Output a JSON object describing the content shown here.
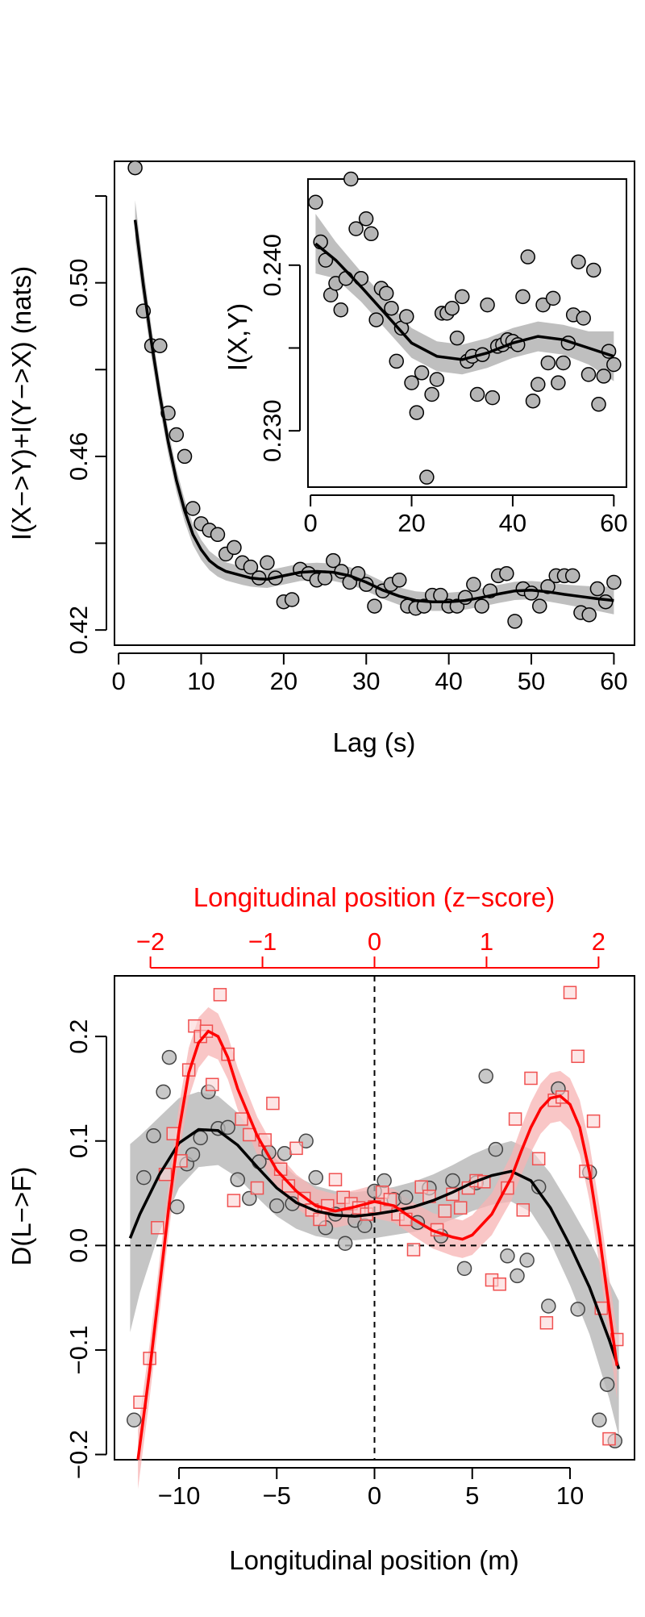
{
  "colors": {
    "black": "#000000",
    "red": "#ff0000",
    "grey_band": "#bfbfbf",
    "red_band": "#f7b3b3",
    "grey_point_fill": "#b5b5b5",
    "red_point_fill": "#fbd6d6"
  },
  "chart_data": [
    {
      "id": "main",
      "type": "scatter",
      "title": "",
      "xlabel": "Lag (s)",
      "ylabel": "I(X−>Y)+I(Y−>X) (nats)",
      "xlim": [
        -0.5,
        62.5
      ],
      "ylim": [
        0.4165,
        0.528
      ],
      "xticks": [
        0,
        10,
        20,
        30,
        40,
        50,
        60
      ],
      "xtick_labels": [
        "0",
        "10",
        "20",
        "30",
        "40",
        "50",
        "60"
      ],
      "yticks": [
        0.42,
        0.44,
        0.46,
        0.48,
        0.5,
        0.52
      ],
      "ytick_labels": [
        "0.42",
        "",
        "0.46",
        "",
        "0.50",
        ""
      ],
      "series": [
        {
          "name": "observed",
          "marker": "circle",
          "x": [
            2,
            3,
            4,
            5,
            6,
            7,
            8,
            9,
            10,
            11,
            12,
            13,
            14,
            15,
            16,
            17,
            18,
            19,
            20,
            21,
            22,
            23,
            24,
            25,
            26,
            27,
            28,
            29,
            30,
            31,
            32,
            33,
            34,
            35,
            36,
            37,
            38,
            39,
            40,
            41,
            42,
            43,
            44,
            45,
            46,
            47,
            48,
            49,
            50,
            51,
            52,
            53,
            54,
            55,
            56,
            57,
            58,
            59,
            60
          ],
          "y": [
            0.5265,
            0.4935,
            0.4855,
            0.4855,
            0.47,
            0.465,
            0.46,
            0.448,
            0.4445,
            0.443,
            0.442,
            0.4375,
            0.439,
            0.4355,
            0.4345,
            0.432,
            0.4355,
            0.432,
            0.4265,
            0.427,
            0.434,
            0.433,
            0.4315,
            0.432,
            0.436,
            0.4335,
            0.431,
            0.433,
            0.4305,
            0.4255,
            0.429,
            0.4305,
            0.4315,
            0.4255,
            0.425,
            0.4255,
            0.428,
            0.428,
            0.4255,
            0.4255,
            0.4275,
            0.4305,
            0.4255,
            0.429,
            0.4325,
            0.433,
            0.422,
            0.4295,
            0.4285,
            0.4255,
            0.43,
            0.4325,
            0.4325,
            0.4325,
            0.424,
            0.4235,
            0.4295,
            0.4265,
            0.431
          ]
        },
        {
          "name": "smooth fit",
          "type": "line",
          "x": [
            2,
            3,
            4,
            5,
            6,
            7,
            8,
            9,
            10,
            11,
            12,
            13,
            14,
            15,
            16,
            17,
            18,
            20,
            22,
            24,
            26,
            28,
            30,
            32,
            34,
            36,
            38,
            40,
            42,
            44,
            46,
            48,
            50,
            52,
            54,
            56,
            58,
            60
          ],
          "y": [
            0.5145,
            0.4995,
            0.486,
            0.474,
            0.4635,
            0.4545,
            0.4475,
            0.442,
            0.4385,
            0.436,
            0.4345,
            0.4335,
            0.433,
            0.4325,
            0.432,
            0.4318,
            0.4317,
            0.4325,
            0.4333,
            0.4335,
            0.4333,
            0.4325,
            0.431,
            0.4292,
            0.4278,
            0.4268,
            0.4265,
            0.4265,
            0.4268,
            0.4275,
            0.4283,
            0.429,
            0.4292,
            0.4288,
            0.4282,
            0.4277,
            0.4272,
            0.4268
          ],
          "band_halfwidth": [
            0.0045,
            0.004,
            0.0035,
            0.003,
            0.0028,
            0.0026,
            0.0025,
            0.0024,
            0.0023,
            0.0022,
            0.0022,
            0.0021,
            0.0021,
            0.0021,
            0.002,
            0.002,
            0.002,
            0.002,
            0.002,
            0.002,
            0.002,
            0.002,
            0.002,
            0.002,
            0.002,
            0.0021,
            0.0021,
            0.0021,
            0.0021,
            0.0021,
            0.0021,
            0.0021,
            0.0021,
            0.0022,
            0.0023,
            0.0025,
            0.0028,
            0.0032
          ]
        }
      ]
    },
    {
      "id": "inset",
      "type": "scatter",
      "title": "",
      "xlabel": "",
      "ylabel": "I(X,Y)",
      "xlim": [
        -0.5,
        62.5
      ],
      "ylim": [
        0.2266,
        0.2452
      ],
      "xticks": [
        0,
        20,
        40,
        60
      ],
      "xtick_labels": [
        "0",
        "20",
        "40",
        "60"
      ],
      "yticks": [
        0.23,
        0.235,
        0.24
      ],
      "ytick_labels": [
        "0.230",
        "",
        "0.240"
      ],
      "series": [
        {
          "name": "observed",
          "marker": "circle",
          "x": [
            1,
            2,
            3,
            4,
            5,
            6,
            7,
            8,
            9,
            10,
            11,
            12,
            13,
            14,
            15,
            16,
            17,
            18,
            19,
            20,
            21,
            22,
            23,
            24,
            25,
            26,
            27,
            28,
            29,
            30,
            31,
            32,
            33,
            34,
            35,
            36,
            37,
            38,
            39,
            40,
            41,
            42,
            43,
            44,
            45,
            46,
            47,
            48,
            49,
            50,
            51,
            52,
            53,
            54,
            55,
            56,
            57,
            58,
            59,
            60
          ],
          "y": [
            0.2438,
            0.2414,
            0.2403,
            0.2382,
            0.2389,
            0.2373,
            0.2392,
            0.2452,
            0.2422,
            0.2392,
            0.2428,
            0.2419,
            0.2367,
            0.2386,
            0.2383,
            0.2374,
            0.2342,
            0.2362,
            0.2369,
            0.2329,
            0.2311,
            0.2335,
            0.2272,
            0.2322,
            0.2331,
            0.2371,
            0.2371,
            0.2374,
            0.2356,
            0.2381,
            0.2342,
            0.2345,
            0.2322,
            0.2346,
            0.2376,
            0.232,
            0.2351,
            0.2352,
            0.2355,
            0.2354,
            0.2352,
            0.2381,
            0.2405,
            0.2318,
            0.2328,
            0.2376,
            0.2341,
            0.238,
            0.2329,
            0.2341,
            0.2353,
            0.237,
            0.2402,
            0.2368,
            0.2334,
            0.2397,
            0.2316,
            0.2333,
            0.2348,
            0.234
          ]
        },
        {
          "name": "smooth fit",
          "type": "line",
          "x": [
            1,
            5,
            10,
            15,
            20,
            25,
            30,
            35,
            40,
            45,
            50,
            55,
            60
          ],
          "y": [
            0.2413,
            0.2403,
            0.2387,
            0.237,
            0.2353,
            0.2345,
            0.2343,
            0.2347,
            0.2353,
            0.2357,
            0.2355,
            0.235,
            0.2345
          ],
          "band_halfwidth": [
            0.0018,
            0.0011,
            0.0009,
            0.0009,
            0.0009,
            0.0009,
            0.0009,
            0.0009,
            0.0009,
            0.0009,
            0.0009,
            0.001,
            0.0015
          ]
        }
      ]
    },
    {
      "id": "bottom",
      "type": "scatter",
      "title": "",
      "xlabel": "Longitudinal position (m)",
      "ylabel": "D(L−>F)",
      "top_axis_label": "Longitudinal position (z−score)",
      "xlim": [
        -13.3,
        13.3
      ],
      "ylim": [
        -0.205,
        0.258
      ],
      "xticks": [
        -10,
        -5,
        0,
        5,
        10
      ],
      "xtick_labels": [
        "−10",
        "−5",
        "0",
        "5",
        "10"
      ],
      "top_xticks": [
        -2,
        -1,
        0,
        1,
        2
      ],
      "top_xtick_labels": [
        "−2",
        "−1",
        "0",
        "1",
        "2"
      ],
      "top_axis_scale_m_per_z": 5.73,
      "yticks": [
        -0.2,
        -0.1,
        0.0,
        0.1,
        0.2
      ],
      "ytick_labels": [
        "−0.2",
        "−0.1",
        "0.0",
        "0.1",
        "0.2"
      ],
      "reference_lines": [
        {
          "axis": "y",
          "value": 0,
          "style": "dashed"
        },
        {
          "axis": "x",
          "value": 0,
          "style": "dashed"
        }
      ],
      "series": [
        {
          "name": "black group",
          "marker": "circle",
          "color": "#000000",
          "x": [
            -12.3,
            -11.8,
            -11.3,
            -10.8,
            -10.5,
            -10.1,
            -9.6,
            -9.3,
            -8.9,
            -8.5,
            -8.0,
            -7.5,
            -7.0,
            -6.4,
            -5.9,
            -5.4,
            -5.0,
            -4.6,
            -4.2,
            -3.5,
            -3.0,
            -2.5,
            -2.0,
            -1.5,
            -1.0,
            -0.5,
            0.0,
            0.5,
            1.0,
            1.6,
            2.2,
            2.8,
            3.4,
            4.0,
            4.6,
            5.2,
            5.7,
            6.2,
            6.8,
            7.3,
            7.8,
            8.4,
            8.9,
            9.4,
            10.4,
            11.0,
            11.5,
            11.9,
            12.3
          ],
          "y": [
            -0.167,
            0.065,
            0.105,
            0.147,
            0.18,
            0.037,
            0.078,
            0.087,
            0.103,
            0.147,
            0.112,
            0.113,
            0.063,
            0.045,
            0.08,
            0.089,
            0.038,
            0.088,
            0.04,
            0.1,
            0.065,
            0.017,
            0.03,
            0.002,
            0.024,
            0.019,
            0.052,
            0.062,
            0.044,
            0.046,
            0.022,
            0.055,
            0.009,
            0.062,
            -0.022,
            0.06,
            0.162,
            0.092,
            -0.01,
            -0.029,
            -0.014,
            0.056,
            -0.058,
            0.15,
            -0.061,
            0.07,
            -0.167,
            -0.133,
            -0.187
          ]
        },
        {
          "name": "red group",
          "marker": "square",
          "color": "#ff0000",
          "x": [
            -12.0,
            -11.5,
            -11.1,
            -10.7,
            -10.3,
            -9.9,
            -9.5,
            -9.2,
            -8.9,
            -8.6,
            -8.3,
            -7.9,
            -7.5,
            -7.2,
            -6.8,
            -6.4,
            -6.0,
            -5.6,
            -5.2,
            -4.8,
            -4.4,
            -4.0,
            -3.6,
            -3.2,
            -2.8,
            -2.4,
            -2.0,
            -1.6,
            -1.2,
            -0.8,
            -0.4,
            0.0,
            0.4,
            0.8,
            1.2,
            1.6,
            2.0,
            2.4,
            2.8,
            3.2,
            3.6,
            4.0,
            4.4,
            4.8,
            5.2,
            5.6,
            6.0,
            6.4,
            6.8,
            7.2,
            7.6,
            8.0,
            8.4,
            8.8,
            9.2,
            9.6,
            10.0,
            10.4,
            10.8,
            11.2,
            11.6,
            12.0,
            12.4
          ],
          "y": [
            -0.15,
            -0.108,
            0.017,
            0.068,
            0.107,
            0.081,
            0.168,
            0.21,
            0.2,
            0.205,
            0.154,
            0.24,
            0.183,
            0.043,
            0.121,
            0.106,
            0.055,
            0.101,
            0.136,
            0.073,
            0.057,
            0.093,
            0.045,
            0.034,
            0.025,
            0.038,
            0.063,
            0.046,
            0.04,
            0.036,
            0.03,
            0.037,
            0.051,
            0.044,
            0.03,
            0.025,
            -0.004,
            0.056,
            0.047,
            0.015,
            0.033,
            0.049,
            0.036,
            0.055,
            0.062,
            0.061,
            -0.033,
            -0.037,
            0.055,
            0.121,
            0.034,
            0.16,
            0.083,
            -0.074,
            0.139,
            0.142,
            0.242,
            0.181,
            0.071,
            0.119,
            -0.06,
            -0.185,
            -0.09
          ]
        },
        {
          "name": "black smooth fit",
          "type": "line",
          "color": "#000000",
          "x": [
            -12.5,
            -12,
            -11,
            -10,
            -9,
            -8,
            -7,
            -6,
            -5,
            -4,
            -3,
            -2,
            -1,
            0,
            1,
            2,
            3,
            4,
            5,
            6,
            7,
            8,
            9,
            10,
            11,
            12,
            12.5
          ],
          "y": [
            0.007,
            0.03,
            0.068,
            0.098,
            0.111,
            0.11,
            0.096,
            0.075,
            0.055,
            0.041,
            0.033,
            0.029,
            0.028,
            0.03,
            0.033,
            0.037,
            0.043,
            0.051,
            0.06,
            0.067,
            0.071,
            0.062,
            0.036,
            0.0,
            -0.04,
            -0.09,
            -0.118
          ],
          "band_halfwidth": [
            0.09,
            0.075,
            0.055,
            0.043,
            0.036,
            0.033,
            0.031,
            0.029,
            0.027,
            0.025,
            0.024,
            0.023,
            0.023,
            0.023,
            0.023,
            0.024,
            0.025,
            0.026,
            0.027,
            0.028,
            0.029,
            0.03,
            0.033,
            0.038,
            0.045,
            0.056,
            0.065
          ]
        },
        {
          "name": "red smooth fit",
          "type": "line",
          "color": "#ff0000",
          "x": [
            -12.1,
            -11.5,
            -11,
            -10.5,
            -10,
            -9.5,
            -9,
            -8.5,
            -8,
            -7.5,
            -7,
            -6,
            -5,
            -4,
            -3,
            -2,
            -1,
            0,
            1,
            2,
            3,
            4,
            4.5,
            5,
            6,
            7,
            7.5,
            8,
            8.5,
            9,
            9.5,
            10,
            10.5,
            11,
            11.5,
            12,
            12.4
          ],
          "y": [
            -0.205,
            -0.12,
            -0.04,
            0.04,
            0.11,
            0.165,
            0.194,
            0.205,
            0.2,
            0.18,
            0.15,
            0.105,
            0.072,
            0.052,
            0.038,
            0.033,
            0.037,
            0.042,
            0.038,
            0.025,
            0.014,
            0.008,
            0.006,
            0.01,
            0.03,
            0.065,
            0.09,
            0.113,
            0.131,
            0.141,
            0.143,
            0.135,
            0.113,
            0.07,
            0.01,
            -0.06,
            -0.115
          ],
          "band_halfwidth": [
            0.028,
            0.026,
            0.025,
            0.024,
            0.024,
            0.024,
            0.024,
            0.023,
            0.022,
            0.021,
            0.02,
            0.018,
            0.017,
            0.016,
            0.016,
            0.016,
            0.016,
            0.016,
            0.016,
            0.016,
            0.017,
            0.018,
            0.018,
            0.019,
            0.02,
            0.022,
            0.023,
            0.024,
            0.024,
            0.024,
            0.024,
            0.025,
            0.026,
            0.027,
            0.028,
            0.03,
            0.032
          ]
        }
      ]
    }
  ]
}
